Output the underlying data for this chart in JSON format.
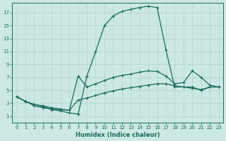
{
  "xlabel": "Humidex (Indice chaleur)",
  "bg_color": "#cce8e4",
  "grid_color": "#aed4cf",
  "line_color": "#1a6b5a",
  "xlim": [
    -0.5,
    23.5
  ],
  "ylim": [
    0,
    18.5
  ],
  "xticks": [
    0,
    1,
    2,
    3,
    4,
    5,
    6,
    7,
    8,
    9,
    10,
    11,
    12,
    13,
    14,
    15,
    16,
    17,
    18,
    19,
    20,
    21,
    22,
    23
  ],
  "yticks": [
    1,
    3,
    5,
    7,
    9,
    11,
    13,
    15,
    17
  ],
  "line1_x": [
    0,
    1,
    2,
    3,
    4,
    5,
    6,
    7,
    8,
    9,
    10,
    11,
    12,
    13,
    14,
    15,
    16,
    17,
    18,
    19,
    20,
    21,
    22,
    23
  ],
  "line1_y": [
    4.0,
    3.3,
    2.8,
    2.5,
    2.0,
    1.8,
    1.5,
    1.3,
    7.2,
    11.0,
    15.0,
    16.5,
    17.2,
    17.5,
    17.8,
    18.0,
    17.8,
    11.2,
    5.5,
    5.5,
    5.5,
    5.0,
    5.5,
    5.5
  ],
  "line2_x": [
    0,
    1,
    2,
    3,
    4,
    5,
    6,
    7,
    8,
    9,
    10,
    11,
    12,
    13,
    14,
    15,
    16,
    17,
    18,
    19,
    20,
    21,
    22,
    23
  ],
  "line2_y": [
    4.0,
    3.3,
    2.8,
    2.6,
    2.3,
    2.1,
    1.9,
    7.2,
    5.5,
    6.0,
    6.5,
    7.0,
    7.3,
    7.5,
    7.8,
    8.0,
    7.9,
    7.2,
    6.0,
    6.2,
    8.0,
    7.0,
    5.8,
    5.5
  ],
  "line3_x": [
    0,
    1,
    2,
    3,
    4,
    5,
    6,
    7,
    8,
    9,
    10,
    11,
    12,
    13,
    14,
    15,
    16,
    17,
    18,
    19,
    20,
    21,
    22,
    23
  ],
  "line3_y": [
    4.0,
    3.3,
    2.6,
    2.3,
    2.1,
    2.0,
    1.9,
    3.5,
    3.8,
    4.2,
    4.6,
    4.9,
    5.2,
    5.4,
    5.6,
    5.8,
    6.0,
    6.0,
    5.7,
    5.5,
    5.3,
    5.1,
    5.5,
    5.5
  ]
}
